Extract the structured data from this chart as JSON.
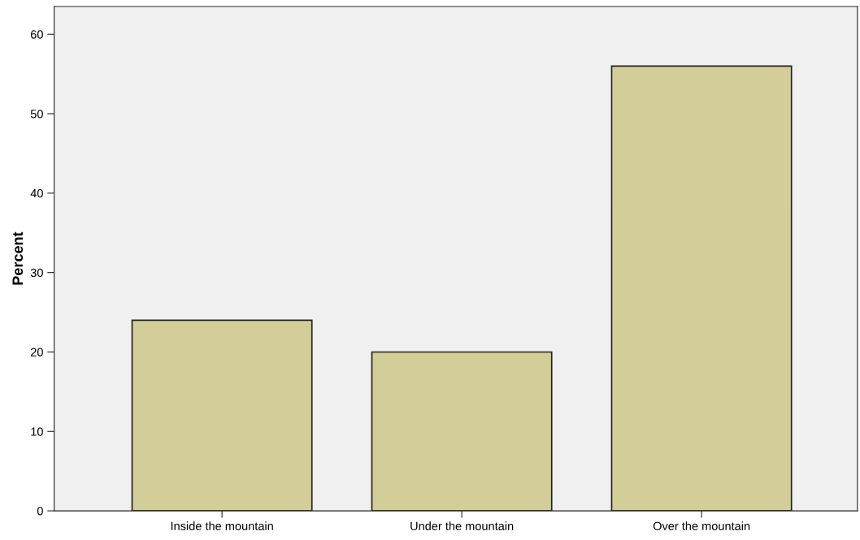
{
  "chart_data": {
    "type": "bar",
    "ylabel": "Percent",
    "categories": [
      "Inside the mountain",
      "Under the mountain",
      "Over the mountain"
    ],
    "values": [
      24,
      20,
      56
    ],
    "color": "#d3ce97",
    "ylim": [
      0,
      63.5
    ],
    "yticks": [
      0,
      10,
      20,
      30,
      40,
      50,
      60
    ],
    "grid": false
  }
}
